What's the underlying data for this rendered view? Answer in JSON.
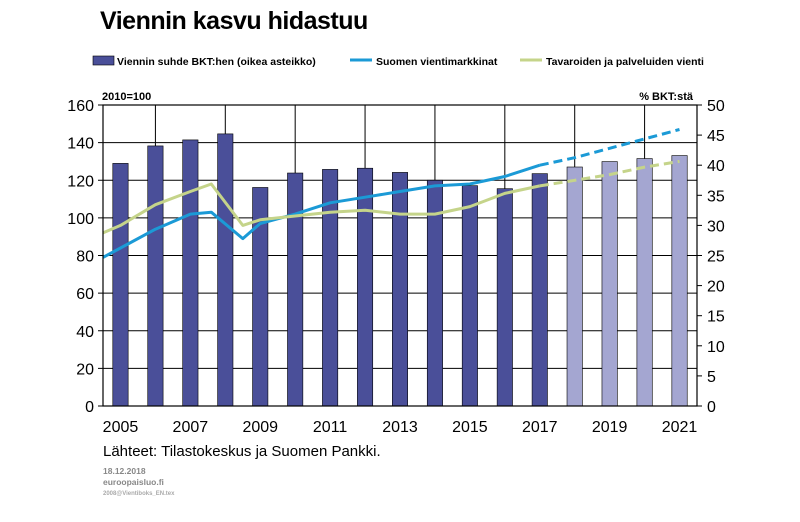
{
  "chart_data": {
    "type": "bar",
    "title": "Viennin kasvu hidastuu",
    "left_axis_label": "2010=100",
    "right_axis_label": "% BKT:stä",
    "ylim_left": [
      0,
      160
    ],
    "yticks_left": [
      "0",
      "20",
      "40",
      "60",
      "80",
      "100",
      "120",
      "140",
      "160"
    ],
    "ylim_right": [
      0,
      50
    ],
    "yticks_right": [
      "0",
      "5",
      "10",
      "15",
      "20",
      "25",
      "30",
      "35",
      "40",
      "45",
      "50"
    ],
    "x_tick_labels": [
      "2005",
      "2007",
      "2009",
      "2011",
      "2013",
      "2015",
      "2017",
      "2019",
      "2021"
    ],
    "years": [
      2005,
      2006,
      2007,
      2008,
      2009,
      2010,
      2011,
      2012,
      2013,
      2014,
      2015,
      2016,
      2017,
      2018,
      2019,
      2020,
      2021
    ],
    "grid": true,
    "legend_position": "top",
    "bars": {
      "name": "Viennin suhde BKT:hen (oikea asteikko)",
      "axis": "right",
      "color": "#4a4f99",
      "forecast_color": "#a4a6d1",
      "first_forecast_year": 2018,
      "values": [
        40.3,
        43.2,
        44.2,
        45.2,
        36.3,
        38.7,
        39.3,
        39.5,
        38.8,
        37.5,
        36.6,
        36.1,
        38.6,
        39.7,
        40.6,
        41.1,
        41.6
      ]
    },
    "series": [
      {
        "name": "Suomen vientimarkkinat",
        "axis": "left",
        "color": "#1b9ad6",
        "style": "solid_then_dashed",
        "dashed_from": 2017,
        "x": [
          2004.5,
          2005,
          2006,
          2007,
          2007.6,
          2008.5,
          2009,
          2010,
          2011,
          2012,
          2013,
          2014,
          2015,
          2016,
          2017,
          2018,
          2019,
          2020,
          2021
        ],
        "values": [
          79,
          84,
          94,
          102,
          103,
          89,
          97,
          102,
          108,
          111,
          114,
          117,
          118,
          122,
          128,
          132,
          137,
          142,
          147
        ]
      },
      {
        "name": "Tavaroiden ja palveluiden vienti",
        "axis": "left",
        "color": "#c5d48a",
        "style": "solid_then_dashed",
        "dashed_from": 2017,
        "x": [
          2004.5,
          2005,
          2006,
          2007,
          2007.6,
          2008.5,
          2009,
          2010,
          2011,
          2012,
          2013,
          2014,
          2015,
          2016,
          2017,
          2018,
          2019,
          2020,
          2021
        ],
        "values": [
          92,
          96,
          107,
          114,
          118,
          96,
          99,
          101,
          103,
          104,
          102,
          102,
          106,
          113,
          117,
          120,
          123,
          127,
          130
        ]
      }
    ]
  },
  "source": "Lähteet: Tilastokeskus ja Suomen Pankki.",
  "date": "18.12.2018",
  "site": "euroopaisluo.fi",
  "code": "2008@Vientiboks_EN.tex"
}
